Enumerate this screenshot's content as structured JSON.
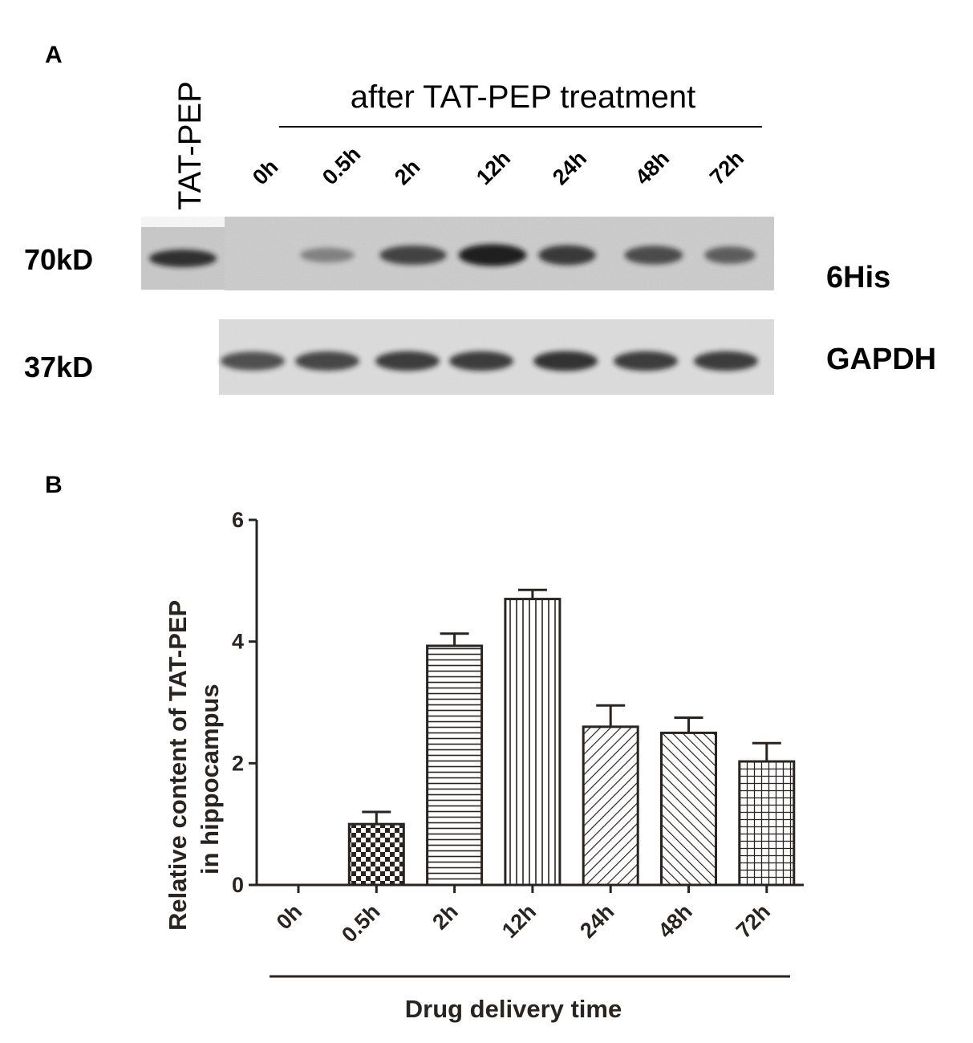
{
  "panel_a": {
    "letter": "A",
    "reference_lane_label": "TAT-PEP",
    "header": "after TAT-PEP treatment",
    "lanes": [
      "0h",
      "0.5h",
      "2h",
      "12h",
      "24h",
      "48h",
      "72h"
    ],
    "blots": [
      {
        "marker": "70kD",
        "label": "6His",
        "reference_band": 0.85,
        "band_intensity": [
          0.0,
          0.4,
          0.75,
          0.95,
          0.8,
          0.7,
          0.6
        ]
      },
      {
        "marker": "37kD",
        "label": "GAPDH",
        "band_intensity": [
          0.7,
          0.75,
          0.8,
          0.8,
          0.85,
          0.8,
          0.8
        ]
      }
    ]
  },
  "panel_b": {
    "letter": "B"
  },
  "chart_data": {
    "type": "bar",
    "categories": [
      "0h",
      "0.5h",
      "2h",
      "12h",
      "24h",
      "48h",
      "72h"
    ],
    "values": [
      0,
      1.0,
      3.93,
      4.7,
      2.6,
      2.5,
      2.03
    ],
    "errors": [
      0,
      0.2,
      0.2,
      0.15,
      0.35,
      0.25,
      0.3
    ],
    "patterns": [
      "none",
      "checker",
      "horizontal",
      "vertical",
      "diag-up",
      "diag-down",
      "grid"
    ],
    "ylabel_line1": "Relative content of TAT-PEP",
    "ylabel_line2": "in hippocampus",
    "xlabel": "Drug delivery time",
    "yticks": [
      0,
      2,
      4,
      6
    ],
    "ylim": [
      0,
      6
    ],
    "grid": false,
    "bar_color": "#2a2420"
  }
}
